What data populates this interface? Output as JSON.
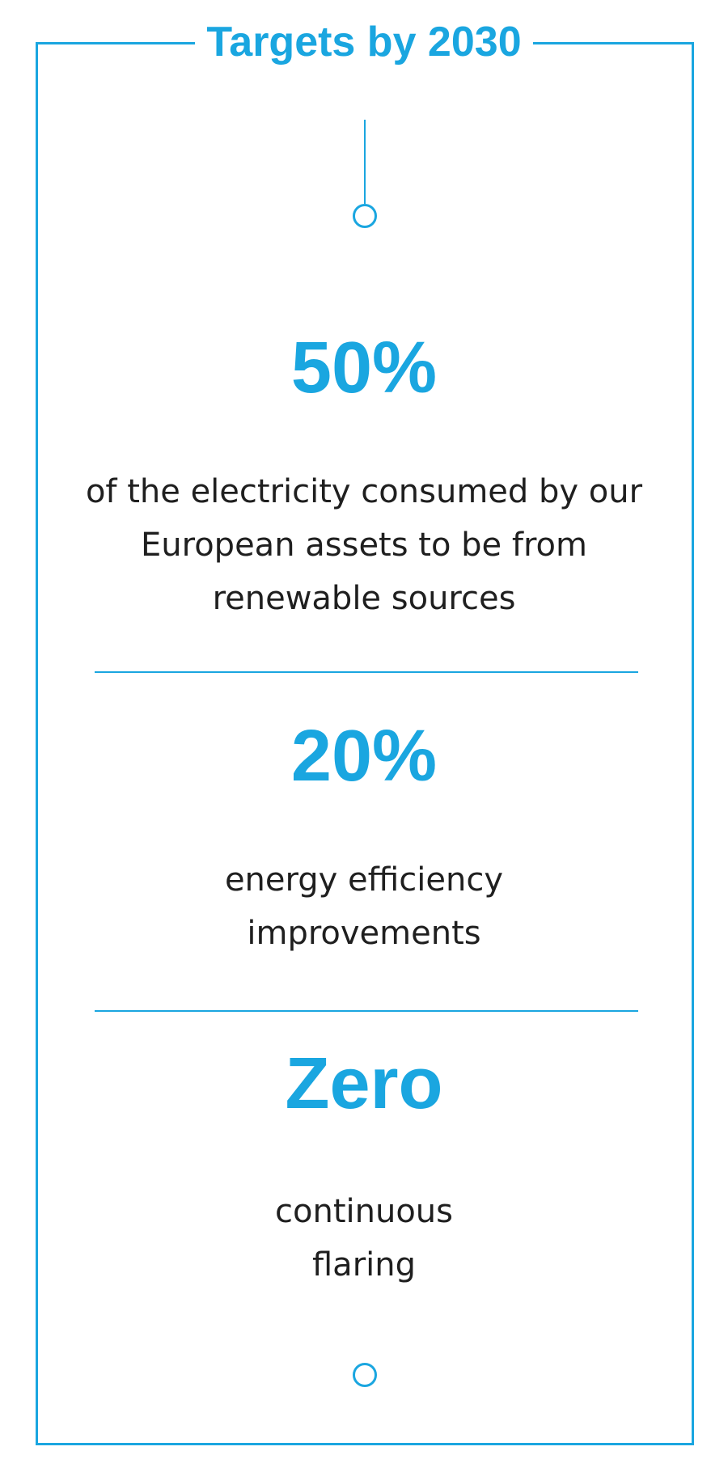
{
  "header": {
    "title": "Targets by 2030"
  },
  "targets": [
    {
      "value": "50%",
      "description": "of the electricity consumed by our European assets to be from renewable sources"
    },
    {
      "value": "20%",
      "description": "energy efficiency improvements"
    },
    {
      "value": "Zero",
      "description": "continuous flaring"
    }
  ],
  "colors": {
    "accent": "#1aa6e0",
    "text": "#1f1f1f"
  }
}
